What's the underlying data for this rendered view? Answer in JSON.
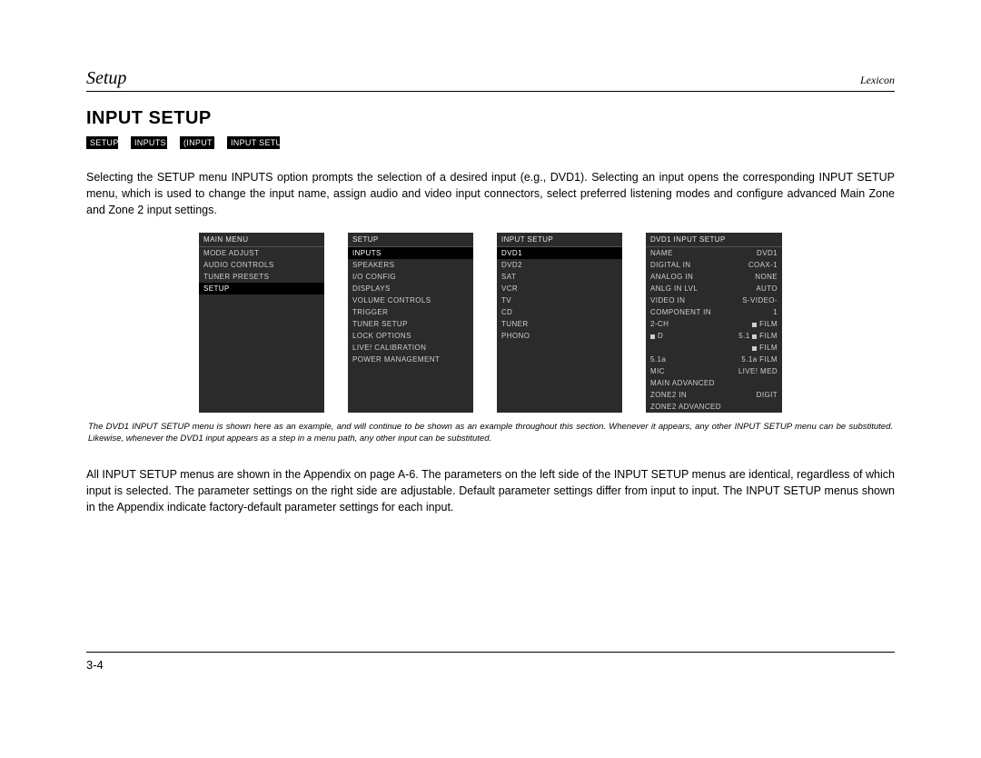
{
  "header": {
    "left": "Setup",
    "right": "Lexicon"
  },
  "title": "INPUT SETUP",
  "breadcrumb": [
    "SETUP",
    "INPUTS",
    "(INPUT",
    "INPUT SETU"
  ],
  "para1": "Selecting the SETUP menu INPUTS option prompts the selection of a desired input (e.g., DVD1). Selecting an input opens the corresponding INPUT SETUP menu, which is used to change the input name, assign audio and video input connectors, select preferred listening modes and configure advanced Main Zone and Zone 2 input settings.",
  "menus": {
    "m1": {
      "title": "MAIN MENU",
      "items": [
        {
          "label": "MODE ADJUST",
          "sel": false
        },
        {
          "label": "AUDIO CONTROLS",
          "sel": false
        },
        {
          "label": "TUNER PRESETS",
          "sel": false
        },
        {
          "label": "SETUP",
          "sel": true
        }
      ]
    },
    "m2": {
      "title": "SETUP",
      "items": [
        {
          "label": "INPUTS",
          "sel": true
        },
        {
          "label": "SPEAKERS",
          "sel": false
        },
        {
          "label": "I/O CONFIG",
          "sel": false
        },
        {
          "label": "DISPLAYS",
          "sel": false
        },
        {
          "label": "VOLUME CONTROLS",
          "sel": false
        },
        {
          "label": "TRIGGER",
          "sel": false
        },
        {
          "label": "TUNER SETUP",
          "sel": false
        },
        {
          "label": "LOCK OPTIONS",
          "sel": false
        },
        {
          "label": "LIVE! CALIBRATION",
          "sel": false
        },
        {
          "label": "POWER MANAGEMENT",
          "sel": false
        }
      ]
    },
    "m3": {
      "title": "INPUT SETUP",
      "items": [
        {
          "label": "DVD1",
          "sel": true
        },
        {
          "label": "DVD2",
          "sel": false
        },
        {
          "label": "SAT",
          "sel": false
        },
        {
          "label": "VCR",
          "sel": false
        },
        {
          "label": "TV",
          "sel": false
        },
        {
          "label": "CD",
          "sel": false
        },
        {
          "label": "TUNER",
          "sel": false
        },
        {
          "label": "PHONO",
          "sel": false
        }
      ]
    },
    "m4": {
      "title": "DVD1 INPUT SETUP",
      "rows": [
        {
          "l": "NAME",
          "r": "DVD1"
        },
        {
          "l": "DIGITAL IN",
          "r": "COAX-1"
        },
        {
          "l": "ANALOG IN",
          "r": "NONE"
        },
        {
          "l": "ANLG IN LVL",
          "r": "AUTO"
        },
        {
          "l": "VIDEO IN",
          "r": "S-VIDEO-"
        },
        {
          "l": "COMPONENT IN",
          "r": "1"
        },
        {
          "l": "2-CH",
          "r": "FILM",
          "sq": true
        },
        {
          "l": "D",
          "r": "FILM",
          "pre": "5.1",
          "sqL": true,
          "sqR": true
        },
        {
          "l": "",
          "r": "FILM",
          "sqR": true
        },
        {
          "l": "5.1a",
          "r": "FILM",
          "pre": "5.1a"
        },
        {
          "l": "MIC",
          "r": "LIVE! MED"
        },
        {
          "l": "MAIN ADVANCED",
          "r": ""
        },
        {
          "l": "ZONE2 IN",
          "r": "DIGIT"
        },
        {
          "l": "ZONE2 ADVANCED",
          "r": ""
        }
      ]
    }
  },
  "note": "The DVD1 INPUT SETUP menu is shown here as an example, and will continue to be shown as an example throughout this section. Whenever it appears, any other INPUT SETUP menu can be substituted. Likewise, whenever the DVD1 input appears as a step in a menu path, any other input can be substituted.",
  "para2": "All INPUT SETUP menus are shown in the Appendix on page A-6. The parameters on the left side of the INPUT SETUP menus are identical, regardless of which input is selected. The parameter settings on the right side are adjustable. Default parameter settings differ from input to input. The INPUT SETUP menus shown in the Appendix indicate factory-default parameter settings for each input.",
  "footer": "3-4",
  "colors": {
    "page_bg": "#ffffff",
    "text": "#000000",
    "menu_bg": "#2b2b2b",
    "menu_text": "#cfcfcf",
    "menu_selected_bg": "#000000",
    "menu_selected_text": "#ffffff",
    "breadcrumb_bg": "#000000",
    "breadcrumb_text": "#ffffff"
  },
  "typography": {
    "header_left_pt": 20,
    "header_right_pt": 12,
    "title_pt": 20,
    "body_pt": 12.5,
    "note_pt": 9.5,
    "menu_pt": 8,
    "breadcrumb_pt": 9
  }
}
